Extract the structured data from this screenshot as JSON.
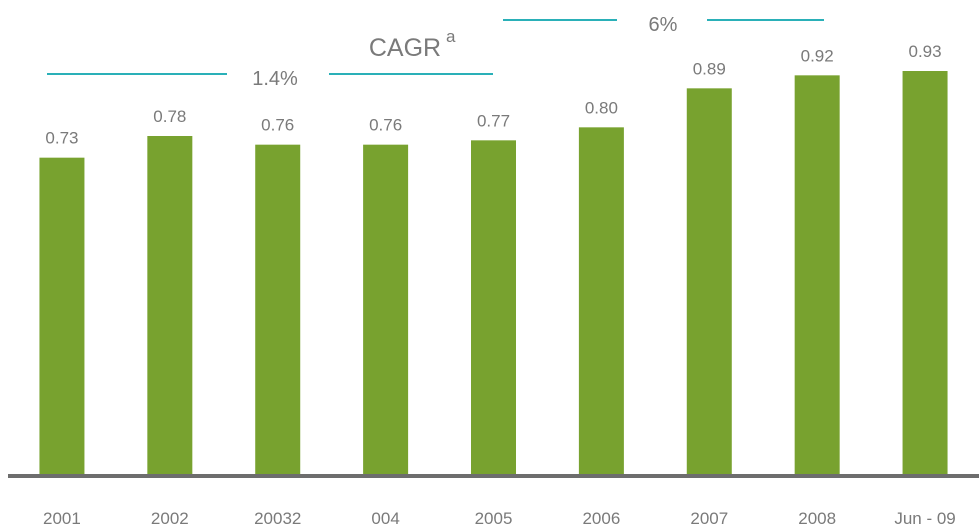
{
  "chart_data": {
    "type": "bar",
    "categories": [
      "2001",
      "2002",
      "20032",
      "004",
      "2005",
      "2006",
      "2007",
      "2008",
      "Jun - 09"
    ],
    "values": [
      0.73,
      0.78,
      0.76,
      0.76,
      0.77,
      0.8,
      0.89,
      0.92,
      0.93
    ],
    "value_labels": [
      "0.73",
      "0.78",
      "0.76",
      "0.76",
      "0.77",
      "0.80",
      "0.89",
      "0.92",
      "0.93"
    ],
    "color": "#78a22f",
    "annotations": {
      "title": "CAGR",
      "title_superscript": "a",
      "left": "1.4%",
      "right": "6%"
    }
  }
}
